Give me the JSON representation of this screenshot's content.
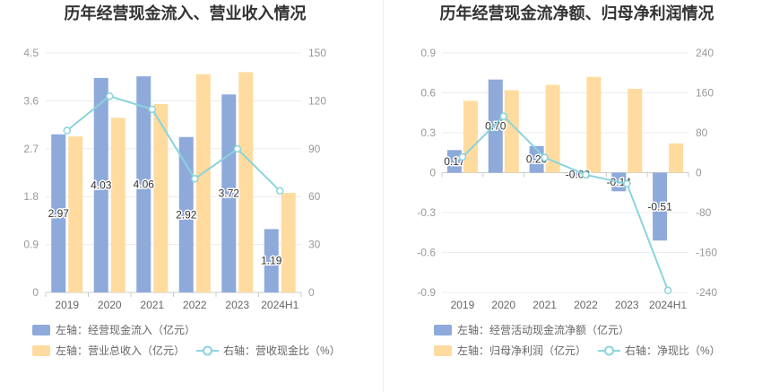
{
  "chart_data": [
    {
      "type": "bar",
      "title": "历年经营现金流入、营业收入情况",
      "categories": [
        "2019",
        "2020",
        "2021",
        "2022",
        "2023",
        "2024H1"
      ],
      "y_left": {
        "ticks": [
          "0",
          "0.9",
          "1.8",
          "2.7",
          "3.6",
          "4.5"
        ],
        "range": [
          0,
          4.5
        ]
      },
      "y_right": {
        "ticks": [
          "0",
          "30",
          "60",
          "90",
          "120",
          "150"
        ],
        "range": [
          0,
          150
        ]
      },
      "grid": true,
      "legend_position": "bottom-left",
      "series": [
        {
          "name": "左轴：经营现金流入（亿元）",
          "type": "bar",
          "axis": "left",
          "color": "#8eaadb",
          "values": [
            2.97,
            4.03,
            4.06,
            2.92,
            3.72,
            1.19
          ],
          "labels": [
            "2.97",
            "4.03",
            "4.06",
            "2.92",
            "3.72",
            "1.19"
          ]
        },
        {
          "name": "左轴：营业总收入（亿元）",
          "type": "bar",
          "axis": "left",
          "color": "#ffdb9f",
          "values": [
            2.93,
            3.28,
            3.54,
            4.1,
            4.14,
            1.87
          ]
        },
        {
          "name": "右轴：营收现金比（%）",
          "type": "line",
          "axis": "right",
          "color": "#8ad4dc",
          "values": [
            101.4,
            122.9,
            114.7,
            71.2,
            89.9,
            63.6
          ]
        }
      ]
    },
    {
      "type": "bar",
      "title": "历年经营现金流净额、归母净利润情况",
      "categories": [
        "2019",
        "2020",
        "2021",
        "2022",
        "2023",
        "2024H1"
      ],
      "y_left": {
        "ticks": [
          "-0.9",
          "-0.6",
          "-0.3",
          "0",
          "0.3",
          "0.6",
          "0.9"
        ],
        "range": [
          -0.9,
          0.9
        ]
      },
      "y_right": {
        "ticks": [
          "-240",
          "-160",
          "-80",
          "0",
          "80",
          "160",
          "240"
        ],
        "range": [
          -240,
          240
        ]
      },
      "grid": true,
      "legend_position": "bottom-left",
      "series": [
        {
          "name": "左轴：经营活动现金流净额（亿元）",
          "type": "bar",
          "axis": "left",
          "color": "#8eaadb",
          "values": [
            0.17,
            0.7,
            0.2,
            -0.03,
            -0.14,
            -0.51
          ],
          "labels": [
            "0.17",
            "0.70",
            "0.20",
            "-0.03",
            "-0.14",
            "-0.51"
          ]
        },
        {
          "name": "左轴：归母净利润（亿元）",
          "type": "bar",
          "axis": "left",
          "color": "#ffdb9f",
          "values": [
            0.54,
            0.62,
            0.66,
            0.72,
            0.63,
            0.22
          ]
        },
        {
          "name": "右轴：净现比（%）",
          "type": "line",
          "axis": "right",
          "color": "#8ad4dc",
          "values": [
            31.5,
            113,
            30.3,
            -4.2,
            -22.2,
            -236
          ]
        }
      ]
    }
  ]
}
